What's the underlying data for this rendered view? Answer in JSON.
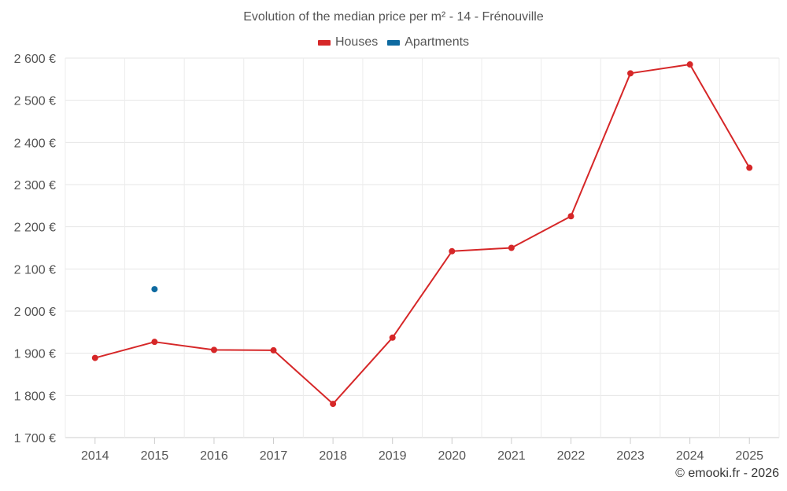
{
  "title": "Evolution of the median price per m² - 14 - Frénouville",
  "credit": "© emooki.fr - 2026",
  "legend": [
    {
      "label": "Houses",
      "color": "#d62728"
    },
    {
      "label": "Apartments",
      "color": "#0e6aa0"
    }
  ],
  "chart_data": {
    "type": "line",
    "title": "Evolution of the median price per m² - 14 - Frénouville",
    "xlabel": "",
    "ylabel": "",
    "categories": [
      "2014",
      "2015",
      "2016",
      "2017",
      "2018",
      "2019",
      "2020",
      "2021",
      "2022",
      "2023",
      "2024",
      "2025"
    ],
    "ylim": [
      1700,
      2600
    ],
    "y_ticks": [
      1700,
      1800,
      1900,
      2000,
      2100,
      2200,
      2300,
      2400,
      2500,
      2600
    ],
    "y_tick_labels": [
      "1 700 €",
      "1 800 €",
      "1 900 €",
      "2 000 €",
      "2 100 €",
      "2 200 €",
      "2 300 €",
      "2 400 €",
      "2 500 €",
      "2 600 €"
    ],
    "grid": true,
    "legend_position": "top-center",
    "series": [
      {
        "name": "Houses",
        "color": "#d62728",
        "values": [
          1889,
          1927,
          1908,
          1907,
          1780,
          1937,
          2142,
          2150,
          2225,
          2564,
          2585,
          2340
        ]
      },
      {
        "name": "Apartments",
        "color": "#0e6aa0",
        "values": [
          null,
          2052,
          null,
          null,
          null,
          null,
          null,
          null,
          null,
          null,
          null,
          null
        ]
      }
    ]
  }
}
